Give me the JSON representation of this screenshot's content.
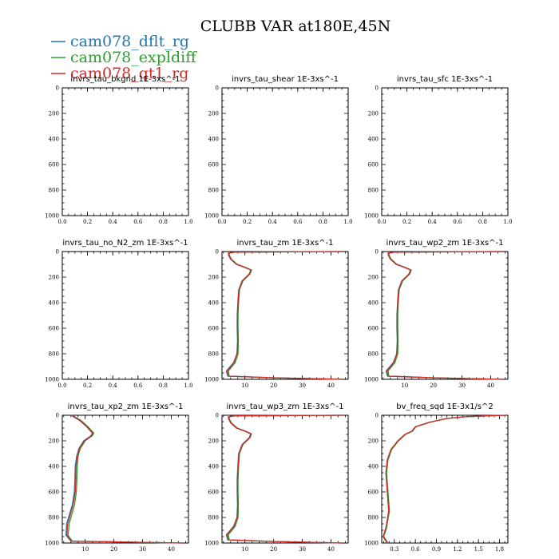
{
  "figure": {
    "title": "CLUBB VAR at180E,45N",
    "legend": [
      {
        "name": "cam078_dflt_rg",
        "color": "#1f77b4"
      },
      {
        "name": "cam078_expldiff",
        "color": "#2ca02c"
      },
      {
        "name": "cam078_qt1_rg",
        "color": "#d62728"
      }
    ]
  },
  "chart_data": [
    {
      "type": "line",
      "title": "invrs_tau_bkgnd 1E-3xs^-1",
      "xlim": [
        0,
        1
      ],
      "ylim": [
        1000,
        0
      ],
      "xticks": [
        "0.0",
        "0.2",
        "0.4",
        "0.6",
        "0.8",
        "1.0"
      ],
      "yticks": [
        "0",
        "200",
        "400",
        "600",
        "800",
        "1000"
      ],
      "series": []
    },
    {
      "type": "line",
      "title": "invrs_tau_shear 1E-3xs^-1",
      "xlim": [
        0,
        1
      ],
      "ylim": [
        1000,
        0
      ],
      "xticks": [
        "0.0",
        "0.2",
        "0.4",
        "0.6",
        "0.8",
        "1.0"
      ],
      "yticks": [
        "0",
        "200",
        "400",
        "600",
        "800",
        "1000"
      ],
      "series": []
    },
    {
      "type": "line",
      "title": "invrs_tau_sfc 1E-3xs^-1",
      "xlim": [
        0,
        1
      ],
      "ylim": [
        1000,
        0
      ],
      "xticks": [
        "0.0",
        "0.2",
        "0.4",
        "0.6",
        "0.8",
        "1.0"
      ],
      "yticks": [
        "0",
        "200",
        "400",
        "600",
        "800",
        "1000"
      ],
      "series": []
    },
    {
      "type": "line",
      "title": "invrs_tau_no_N2_zm 1E-3xs^-1",
      "xlim": [
        0,
        1
      ],
      "ylim": [
        1000,
        0
      ],
      "xticks": [
        "0.0",
        "0.2",
        "0.4",
        "0.6",
        "0.8",
        "1.0"
      ],
      "yticks": [
        "0",
        "200",
        "400",
        "600",
        "800",
        "1000"
      ],
      "series": []
    },
    {
      "type": "line",
      "title": "invrs_tau_zm 1E-3xs^-1",
      "xlim": [
        2,
        46
      ],
      "ylim": [
        1000,
        0
      ],
      "xticks": [
        "10",
        "20",
        "30",
        "40"
      ],
      "yticks": [
        "0",
        "200",
        "400",
        "600",
        "800",
        "1000"
      ],
      "series": [
        {
          "color": "#1f77b4",
          "x": [
            44,
            6,
            4.2,
            4.3,
            5,
            7,
            10,
            12,
            11.5,
            9,
            7.8,
            7.5,
            7.3,
            7.3,
            7.4,
            7.2,
            6,
            3.5,
            4,
            20,
            44
          ],
          "y": [
            0,
            5,
            12,
            30,
            60,
            100,
            125,
            145,
            175,
            230,
            300,
            400,
            500,
            600,
            700,
            800,
            870,
            935,
            975,
            988,
            1000
          ]
        },
        {
          "color": "#2ca02c",
          "x": [
            44,
            6.5,
            4.5,
            4.6,
            5.3,
            7.3,
            10.3,
            12.3,
            11.8,
            9.3,
            8.1,
            7.8,
            7.6,
            7.6,
            7.7,
            7.6,
            6.6,
            4.2,
            4.5,
            21,
            44
          ],
          "y": [
            0,
            5,
            12,
            30,
            60,
            100,
            125,
            145,
            175,
            230,
            300,
            400,
            500,
            600,
            700,
            800,
            870,
            935,
            975,
            988,
            1000
          ]
        },
        {
          "color": "#d62728",
          "x": [
            44,
            6.2,
            4.4,
            4.4,
            5.1,
            7.1,
            10.1,
            12.1,
            11.6,
            9.1,
            7.9,
            7.6,
            7.4,
            7.4,
            7.5,
            7.3,
            6.2,
            3.8,
            4.2,
            20.5,
            44
          ],
          "y": [
            0,
            5,
            12,
            30,
            60,
            100,
            125,
            145,
            175,
            230,
            300,
            400,
            500,
            600,
            700,
            800,
            870,
            935,
            975,
            988,
            1000
          ]
        }
      ]
    },
    {
      "type": "line",
      "title": "invrs_tau_wp2_zm 1E-3xs^-1",
      "xlim": [
        2,
        46
      ],
      "ylim": [
        1000,
        0
      ],
      "xticks": [
        "10",
        "20",
        "30",
        "40"
      ],
      "yticks": [
        "0",
        "200",
        "400",
        "600",
        "800",
        "1000"
      ],
      "series": [
        {
          "color": "#1f77b4",
          "x": [
            44,
            6,
            4.2,
            4.3,
            5,
            7,
            10,
            12,
            11.5,
            9,
            7.8,
            7.5,
            7.3,
            7.3,
            7.4,
            7.2,
            6,
            3.5,
            4,
            20,
            44
          ],
          "y": [
            0,
            5,
            12,
            30,
            60,
            100,
            125,
            145,
            175,
            230,
            300,
            400,
            500,
            600,
            700,
            800,
            870,
            935,
            975,
            988,
            1000
          ]
        },
        {
          "color": "#2ca02c",
          "x": [
            44,
            6.5,
            4.5,
            4.6,
            5.3,
            7.3,
            10.3,
            12.3,
            11.8,
            9.3,
            8.1,
            7.8,
            7.6,
            7.6,
            7.7,
            7.6,
            6.6,
            4.2,
            4.5,
            21,
            44
          ],
          "y": [
            0,
            5,
            12,
            30,
            60,
            100,
            125,
            145,
            175,
            230,
            300,
            400,
            500,
            600,
            700,
            800,
            870,
            935,
            975,
            988,
            1000
          ]
        },
        {
          "color": "#d62728",
          "x": [
            44,
            6.2,
            4.4,
            4.4,
            5.1,
            7.1,
            10.1,
            12.1,
            11.6,
            9.1,
            7.9,
            7.6,
            7.4,
            7.4,
            7.5,
            7.3,
            6.2,
            3.8,
            4.2,
            20.5,
            44
          ],
          "y": [
            0,
            5,
            12,
            30,
            60,
            100,
            125,
            145,
            175,
            230,
            300,
            400,
            500,
            600,
            700,
            800,
            870,
            935,
            975,
            988,
            1000
          ]
        }
      ]
    },
    {
      "type": "line",
      "title": "invrs_tau_xp2_zm 1E-3xs^-1",
      "xlim": [
        2,
        46
      ],
      "ylim": [
        1000,
        0
      ],
      "xticks": [
        "10",
        "20",
        "30",
        "40"
      ],
      "yticks": [
        "0",
        "200",
        "400",
        "600",
        "800",
        "1000"
      ],
      "series": [
        {
          "color": "#1f77b4",
          "x": [
            5,
            8,
            10.5,
            12.5,
            12,
            9.5,
            7.8,
            7,
            6.5,
            6.4,
            6.2,
            5.5,
            3.5,
            3.3,
            5,
            44
          ],
          "y": [
            0,
            40,
            90,
            140,
            160,
            200,
            260,
            320,
            400,
            500,
            600,
            700,
            850,
            940,
            985,
            1000
          ]
        },
        {
          "color": "#2ca02c",
          "x": [
            5.5,
            8.5,
            11,
            13,
            12.5,
            10,
            8.3,
            7.5,
            7.2,
            7.1,
            6.9,
            6.3,
            4.4,
            4,
            5.5,
            44
          ],
          "y": [
            0,
            40,
            90,
            140,
            160,
            200,
            260,
            320,
            400,
            500,
            600,
            700,
            850,
            940,
            985,
            1000
          ]
        },
        {
          "color": "#d62728",
          "x": [
            5.2,
            8.2,
            10.7,
            12.7,
            12.2,
            9.7,
            8,
            7.2,
            6.8,
            6.7,
            6.5,
            5.8,
            3.9,
            3.6,
            5.2,
            44
          ],
          "y": [
            0,
            40,
            90,
            140,
            160,
            200,
            260,
            320,
            400,
            500,
            600,
            700,
            850,
            940,
            985,
            1000
          ]
        }
      ]
    },
    {
      "type": "line",
      "title": "invrs_tau_wp3_zm 1E-3xs^-1",
      "xlim": [
        2,
        46
      ],
      "ylim": [
        1000,
        0
      ],
      "xticks": [
        "10",
        "20",
        "30",
        "40"
      ],
      "yticks": [
        "0",
        "200",
        "400",
        "600",
        "800",
        "1000"
      ],
      "series": [
        {
          "color": "#1f77b4",
          "x": [
            44,
            6,
            4.2,
            4.3,
            5,
            7,
            10,
            12,
            11.5,
            9,
            7.8,
            7.5,
            7.3,
            7.3,
            7.4,
            7.2,
            6,
            3.5,
            4,
            20,
            44
          ],
          "y": [
            0,
            5,
            12,
            30,
            60,
            100,
            125,
            145,
            175,
            230,
            300,
            400,
            500,
            600,
            700,
            800,
            870,
            935,
            975,
            988,
            1000
          ]
        },
        {
          "color": "#2ca02c",
          "x": [
            44,
            6.5,
            4.5,
            4.6,
            5.3,
            7.3,
            10.3,
            12.3,
            11.8,
            9.3,
            8.1,
            7.8,
            7.6,
            7.6,
            7.7,
            7.6,
            6.6,
            4.2,
            4.5,
            21,
            44
          ],
          "y": [
            0,
            5,
            12,
            30,
            60,
            100,
            125,
            145,
            175,
            230,
            300,
            400,
            500,
            600,
            700,
            800,
            870,
            935,
            975,
            988,
            1000
          ]
        },
        {
          "color": "#d62728",
          "x": [
            44,
            6.2,
            4.4,
            4.4,
            5.1,
            7.1,
            10.1,
            12.1,
            11.6,
            9.1,
            7.9,
            7.6,
            7.4,
            7.4,
            7.5,
            7.3,
            6.2,
            3.8,
            4.2,
            20.5,
            44
          ],
          "y": [
            0,
            5,
            12,
            30,
            60,
            100,
            125,
            145,
            175,
            230,
            300,
            400,
            500,
            600,
            700,
            800,
            870,
            935,
            975,
            988,
            1000
          ]
        }
      ]
    },
    {
      "type": "line",
      "title": "bv_freq_sqd 1E-3x1/s^2",
      "xlim": [
        0.12,
        1.92
      ],
      "ylim": [
        1000,
        0
      ],
      "xticks": [
        "0.3",
        "0.6",
        "0.9",
        "1.2",
        "1.5",
        "1.8"
      ],
      "yticks": [
        "0",
        "200",
        "400",
        "600",
        "800",
        "1000"
      ],
      "series": [
        {
          "color": "#1f77b4",
          "x": [
            1.9,
            1.6,
            1.3,
            1.05,
            0.8,
            0.6,
            0.55,
            0.45,
            0.35,
            0.25,
            0.2,
            0.18,
            0.2,
            0.22,
            0.18,
            0.14,
            0.2
          ],
          "y": [
            0,
            5,
            12,
            25,
            55,
            90,
            125,
            150,
            200,
            270,
            350,
            450,
            600,
            750,
            880,
            950,
            1000
          ]
        },
        {
          "color": "#2ca02c",
          "x": [
            1.9,
            1.61,
            1.31,
            1.06,
            0.81,
            0.61,
            0.56,
            0.46,
            0.36,
            0.26,
            0.21,
            0.19,
            0.21,
            0.23,
            0.19,
            0.15,
            0.21
          ],
          "y": [
            0,
            5,
            12,
            25,
            55,
            90,
            125,
            150,
            200,
            270,
            350,
            450,
            600,
            750,
            880,
            950,
            1000
          ]
        },
        {
          "color": "#d62728",
          "x": [
            1.9,
            1.6,
            1.3,
            1.05,
            0.8,
            0.6,
            0.55,
            0.45,
            0.35,
            0.25,
            0.2,
            0.18,
            0.2,
            0.22,
            0.18,
            0.14,
            0.2
          ],
          "y": [
            0,
            5,
            12,
            25,
            55,
            90,
            125,
            150,
            200,
            270,
            350,
            450,
            600,
            750,
            880,
            950,
            1000
          ]
        }
      ]
    }
  ]
}
